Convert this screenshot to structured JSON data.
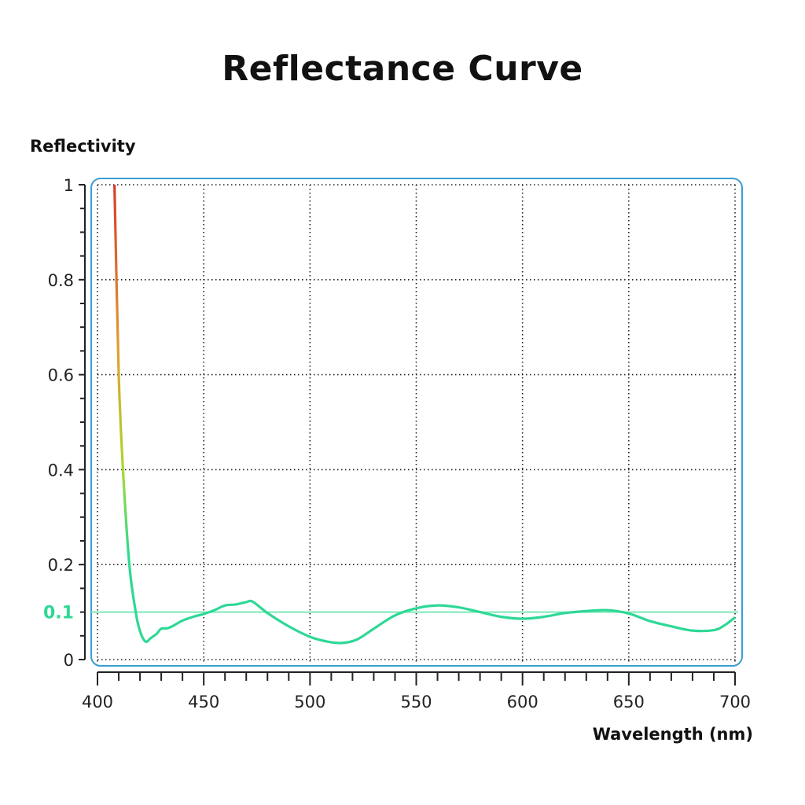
{
  "chart_data": {
    "type": "line",
    "title": "Reflectance Curve",
    "xlabel": "Wavelength (nm)",
    "ylabel": "Reflectivity",
    "xlim": [
      400,
      700
    ],
    "ylim": [
      0,
      1
    ],
    "x_ticks": [
      "400",
      "450",
      "500",
      "550",
      "600",
      "650",
      "700"
    ],
    "y_ticks": [
      "0",
      "0.2",
      "0.4",
      "0.6",
      "0.8",
      "1"
    ],
    "grid": true,
    "reference_line": {
      "value": 0.1,
      "label": "0.1",
      "color": "#7de8b8",
      "label_color": "#2ed895"
    },
    "series": [
      {
        "x": [
          408,
          410,
          412,
          415,
          418,
          420,
          422.6,
          425,
          428,
          430,
          433,
          436,
          440,
          445,
          450,
          455,
          460,
          465,
          470,
          473,
          480,
          490,
          500,
          508,
          515,
          522,
          530,
          540,
          550,
          560,
          570,
          580,
          590,
          600,
          610,
          620,
          630,
          640,
          650,
          660,
          670,
          680,
          690,
          695,
          700
        ],
        "y": [
          1.0,
          0.6,
          0.4,
          0.2,
          0.1,
          0.06,
          0.038,
          0.045,
          0.055,
          0.065,
          0.066,
          0.072,
          0.082,
          0.09,
          0.096,
          0.104,
          0.114,
          0.116,
          0.121,
          0.122,
          0.098,
          0.07,
          0.048,
          0.038,
          0.035,
          0.042,
          0.065,
          0.093,
          0.108,
          0.114,
          0.11,
          0.1,
          0.09,
          0.086,
          0.09,
          0.098,
          0.102,
          0.104,
          0.097,
          0.081,
          0.07,
          0.061,
          0.062,
          0.072,
          0.089
        ],
        "color_gradient": [
          "#2ed895",
          "#a8d830",
          "#e0a030",
          "#d83a2a"
        ]
      }
    ],
    "frame_color": "#3a9fd0"
  }
}
